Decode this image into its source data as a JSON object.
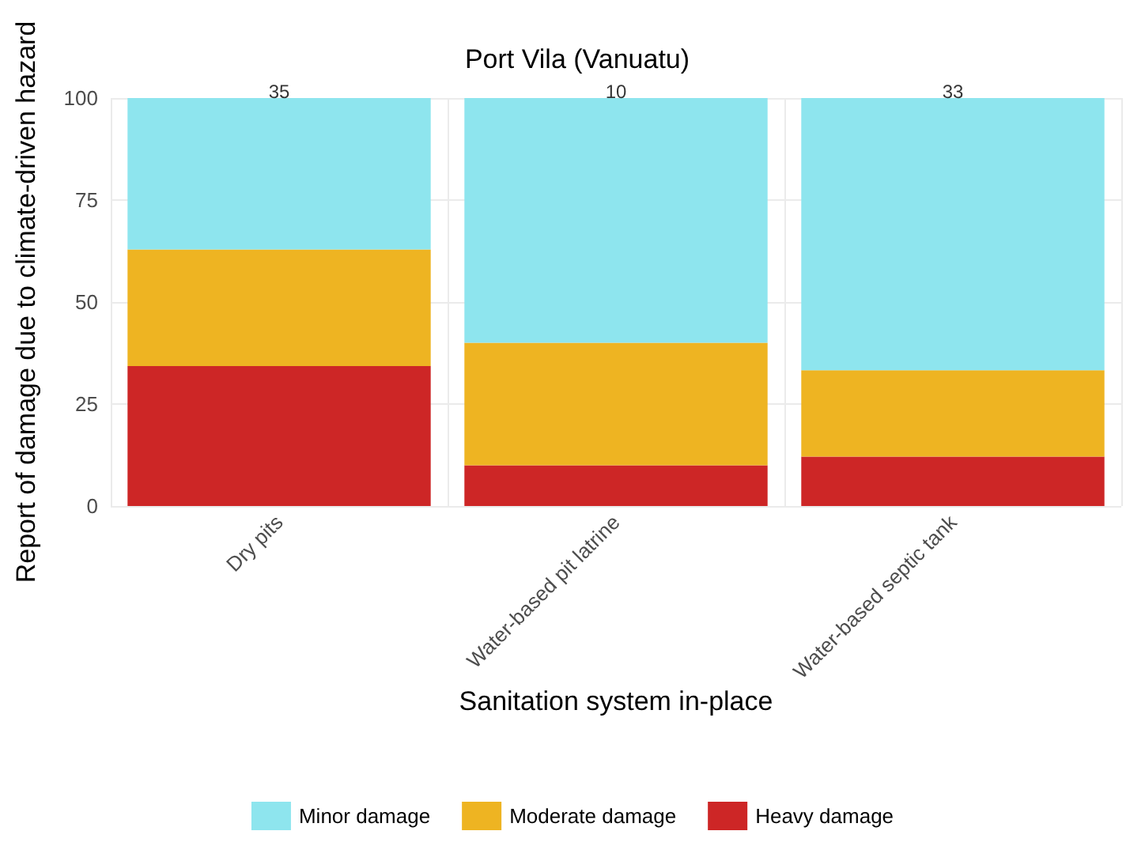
{
  "chart_data": {
    "type": "bar",
    "title": "Port Vila (Vanuatu)",
    "xlabel": "Sanitation system in-place",
    "ylabel": "Report of damage due to climate-driven hazard",
    "categories": [
      "Dry pits",
      "Water-based pit latrine",
      "Water-based septic tank"
    ],
    "stacked": true,
    "series": [
      {
        "name": "Heavy damage",
        "color": "#cd2626",
        "values": [
          34.3,
          10,
          12.1
        ]
      },
      {
        "name": "Moderate damage",
        "color": "#eeb422",
        "values": [
          28.6,
          30,
          21.2
        ]
      },
      {
        "name": "Minor damage",
        "color": "#8ee5ee",
        "values": [
          37.1,
          60,
          66.7
        ]
      }
    ],
    "annotations": [
      {
        "text": "35",
        "x": "Dry pits",
        "y": 100
      },
      {
        "text": "10",
        "x": "Water-based pit latrine",
        "y": 100
      },
      {
        "text": "33",
        "x": "Water-based septic tank",
        "y": 100
      }
    ],
    "ylim": [
      0,
      100
    ],
    "yticks": [
      0,
      25,
      50,
      75,
      100
    ],
    "grid": true,
    "legend": "bottom"
  }
}
